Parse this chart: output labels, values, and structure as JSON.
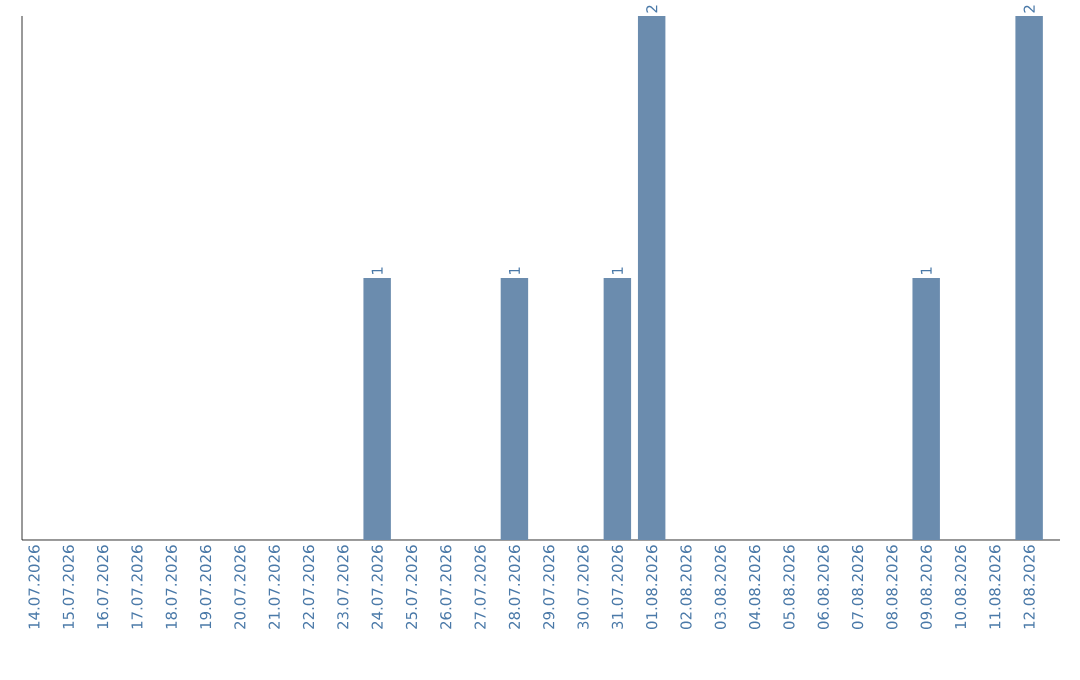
{
  "chart_data": {
    "type": "bar",
    "categories": [
      "14.07.2026",
      "15.07.2026",
      "16.07.2026",
      "17.07.2026",
      "18.07.2026",
      "19.07.2026",
      "20.07.2026",
      "21.07.2026",
      "22.07.2026",
      "23.07.2026",
      "24.07.2026",
      "25.07.2026",
      "26.07.2026",
      "27.07.2026",
      "28.07.2026",
      "29.07.2026",
      "30.07.2026",
      "31.07.2026",
      "01.08.2026",
      "02.08.2026",
      "03.08.2026",
      "04.08.2026",
      "05.08.2026",
      "06.08.2026",
      "07.08.2026",
      "08.08.2026",
      "09.08.2026",
      "10.08.2026",
      "11.08.2026",
      "12.08.2026"
    ],
    "values": [
      null,
      null,
      null,
      null,
      null,
      null,
      null,
      null,
      null,
      null,
      1,
      null,
      null,
      null,
      1,
      null,
      null,
      1,
      2,
      null,
      null,
      null,
      null,
      null,
      null,
      null,
      1,
      null,
      null,
      2
    ],
    "color": "#6b8cae",
    "data_labels": true
  }
}
